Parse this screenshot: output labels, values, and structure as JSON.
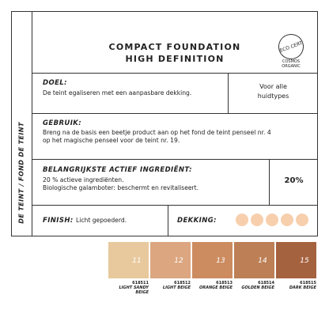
{
  "side_label": "DE TEINT / FOND DE TEINT",
  "header": {
    "title": [
      "COMPACT FOUNDATION",
      "HIGH DEFINITION"
    ],
    "badge": "ECO CERT",
    "badge_caption": [
      "COSMOS",
      "ORGANIC"
    ]
  },
  "doel": {
    "label": "DOEL:",
    "text": "De teint egaliseren met een aanpasbare dekking.",
    "aside": [
      "Voor alle",
      "huidtypes"
    ]
  },
  "gebruik": {
    "label": "GEBRUIK:",
    "text": [
      "Breng na de basis een beetje product aan op het fond de teint penseel nr. 4",
      "op het magische penseel voor de teint nr. 19."
    ]
  },
  "ingredient": {
    "label": "BELANGRIJKSTE ACTIEF INGREDIËNT:",
    "lines": [
      "20 % actieve ingrediënten.",
      "Biologische galamboter: beschermt en revitaliseert."
    ],
    "value": "20%"
  },
  "finish": {
    "label": "FINISH:",
    "text": "Licht gepoederd."
  },
  "coverage": {
    "label": "DEKKING:"
  },
  "shades": [
    {
      "number": "11",
      "code": "618511",
      "name": [
        "LIGHT SANDY",
        "BEIGE"
      ],
      "color": "#e8c99e"
    },
    {
      "number": "12",
      "code": "618512",
      "name": [
        "LIGHT BEIGE"
      ],
      "color": "#dba680"
    },
    {
      "number": "13",
      "code": "618513",
      "name": [
        "ORANGE BEIGE"
      ],
      "color": "#cc8c60"
    },
    {
      "number": "14",
      "code": "618514",
      "name": [
        "GOLDEN BEIGE"
      ],
      "color": "#bd7f55"
    },
    {
      "number": "15",
      "code": "618515",
      "name": [
        "DARK BEIGE"
      ],
      "color": "#a5623f"
    }
  ]
}
